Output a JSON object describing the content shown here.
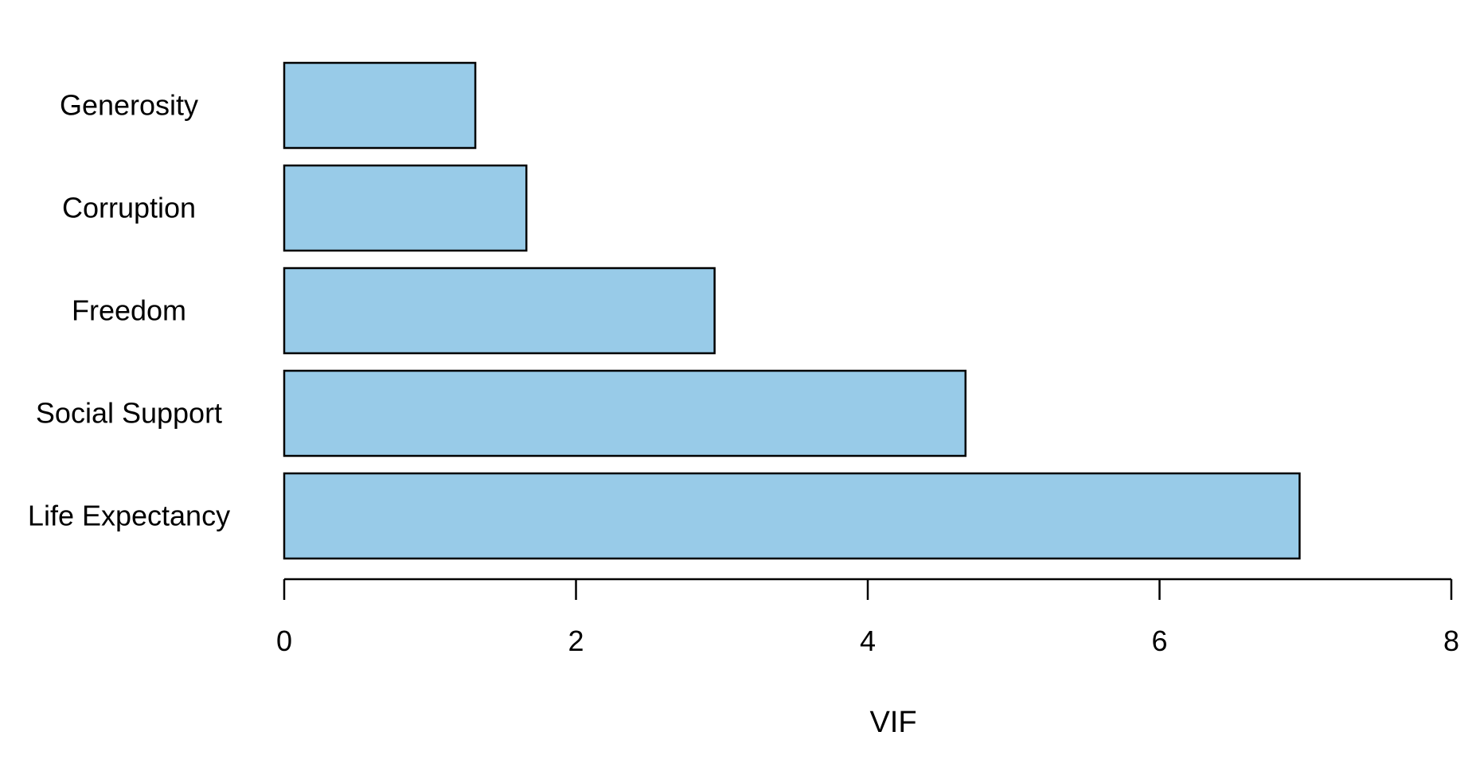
{
  "chart_data": {
    "type": "bar",
    "orientation": "horizontal",
    "title": "",
    "xlabel": "VIF",
    "ylabel": "",
    "categories": [
      "Life Expectancy",
      "Social Support",
      "Freedom",
      "Corruption",
      "Generosity"
    ],
    "values": [
      6.96,
      4.67,
      2.95,
      1.66,
      1.31
    ],
    "xlim": [
      0,
      8
    ],
    "xticks": [
      0,
      2,
      4,
      6,
      8
    ],
    "grid": false,
    "bar_color": "#98cbe8",
    "bar_edge_color": "#000000"
  }
}
